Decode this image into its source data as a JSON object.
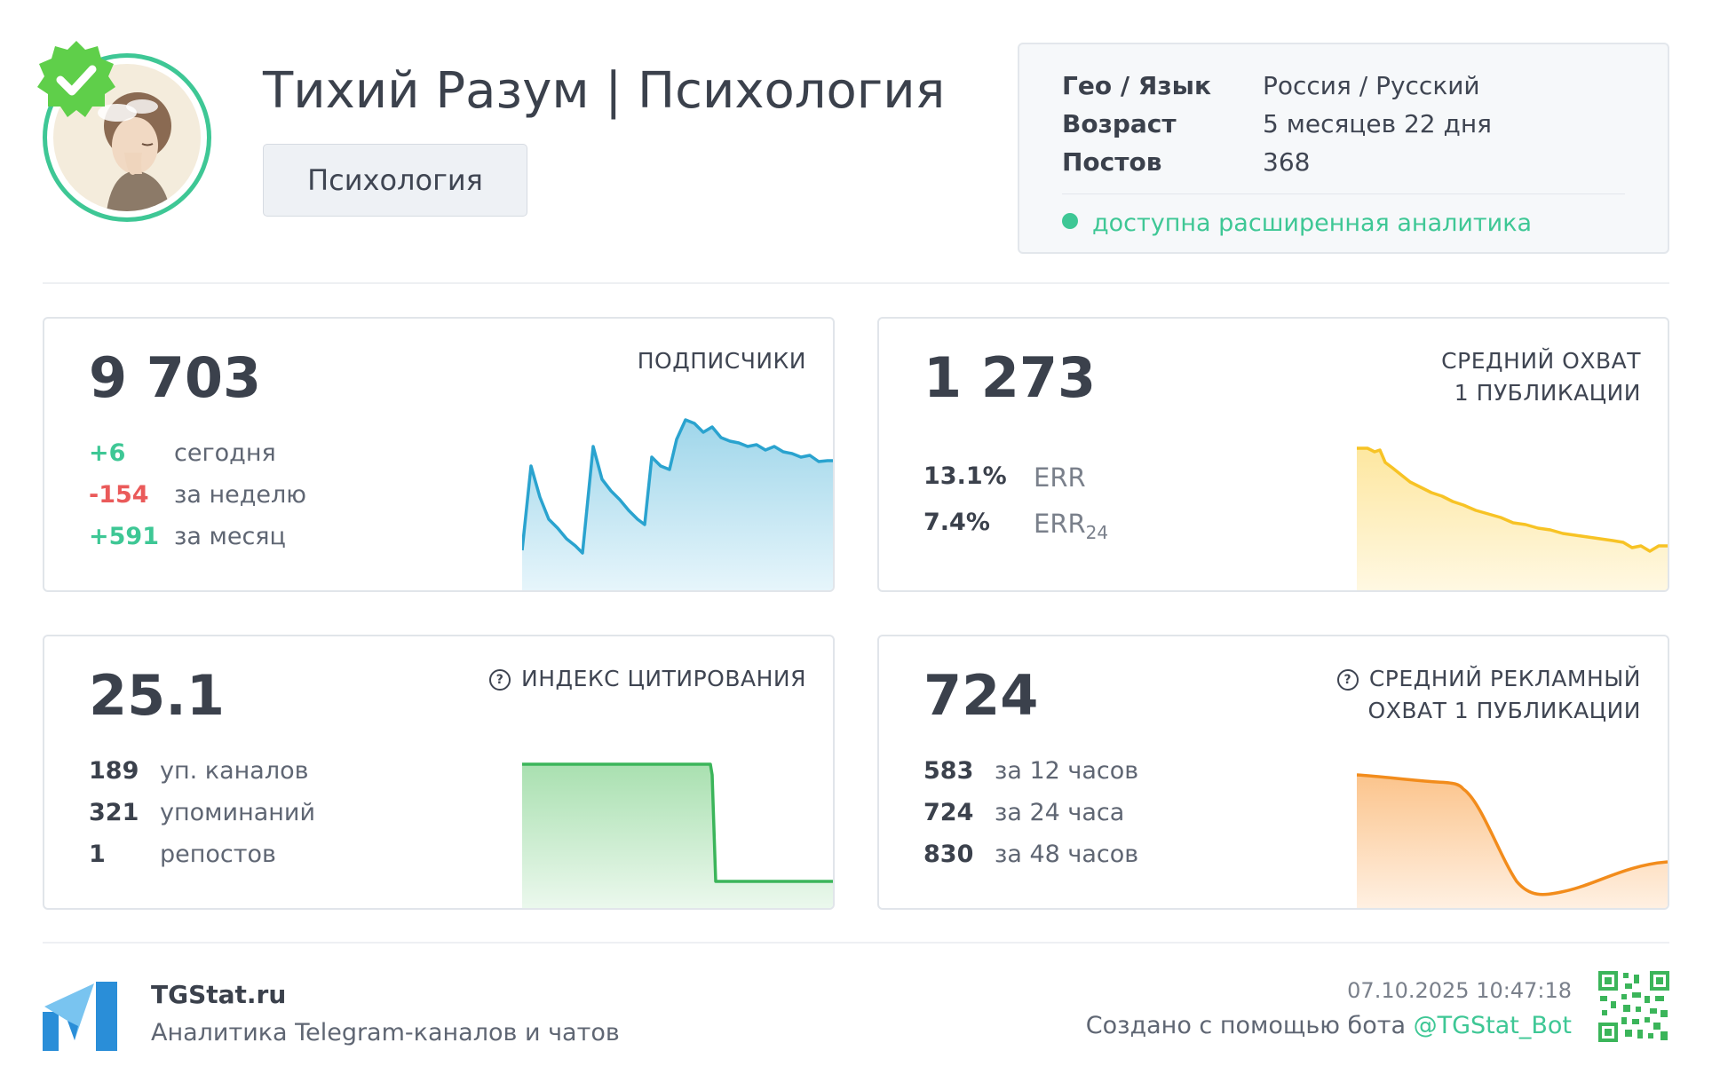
{
  "channel": {
    "title": "Тихий Разум | Психология",
    "category": "Психология",
    "verified": true
  },
  "info": {
    "rows": [
      {
        "label": "Гео / Язык",
        "value": "Россия / Русский"
      },
      {
        "label": "Возраст",
        "value": "5 месяцев 22 дня"
      },
      {
        "label": "Постов",
        "value": "368"
      }
    ],
    "status": "доступна расширенная аналитика"
  },
  "cards": {
    "subscribers": {
      "value": "9 703",
      "label": "ПОДПИСЧИКИ",
      "rows": [
        {
          "num": "+6",
          "text": "сегодня",
          "tone": "green"
        },
        {
          "num": "-154",
          "text": "за неделю",
          "tone": "red"
        },
        {
          "num": "+591",
          "text": "за месяц",
          "tone": "green"
        }
      ]
    },
    "reach": {
      "value": "1 273",
      "label_line1": "СРЕДНИЙ ОХВАТ",
      "label_line2": "1 ПУБЛИКАЦИИ",
      "rows": [
        {
          "num": "13.1%",
          "text": "ERR"
        },
        {
          "num": "7.4%",
          "text": "ERR",
          "sub": "24"
        }
      ]
    },
    "citation": {
      "value": "25.1",
      "label": "ИНДЕКС ЦИТИРОВАНИЯ",
      "rows": [
        {
          "num": "189",
          "text": "уп. каналов"
        },
        {
          "num": "321",
          "text": "упоминаний"
        },
        {
          "num": "1",
          "text": "репостов"
        }
      ]
    },
    "ad_reach": {
      "value": "724",
      "label_line1": "СРЕДНИЙ РЕКЛАМНЫЙ",
      "label_line2": "ОХВАТ 1 ПУБЛИКАЦИИ",
      "rows": [
        {
          "num": "583",
          "text": "за 12 часов"
        },
        {
          "num": "724",
          "text": "за 24 часа"
        },
        {
          "num": "830",
          "text": "за 48 часов"
        }
      ]
    }
  },
  "footer": {
    "brand": "TGStat.ru",
    "tagline": "Аналитика Telegram-каналов и чатов",
    "timestamp": "07.10.2025 10:47:18",
    "created_prefix": "Создано с помощью бота ",
    "bot_handle": "@TGStat_Bot"
  },
  "colors": {
    "accent_green": "#3ec795",
    "negative_red": "#ea5a5a",
    "subscribers_line": "#2aa3cf",
    "reach_line": "#f7c325",
    "citation_line": "#3bb55a",
    "ad_reach_line": "#f28c1c"
  },
  "icons": {
    "verified": "verified-badge-icon",
    "help": "question-circle-icon",
    "logo": "tgstat-logo-icon",
    "qr": "qr-code-icon"
  }
}
